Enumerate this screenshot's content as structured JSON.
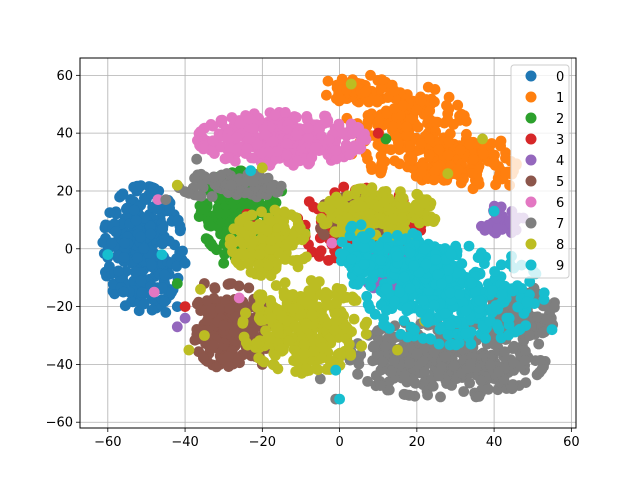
{
  "chart_data": {
    "type": "scatter",
    "title": "",
    "xlabel": "",
    "ylabel": "",
    "xlim": [
      -67.2,
      61.2
    ],
    "ylim": [
      -62.0,
      66.0
    ],
    "xticks": [
      -60,
      -40,
      -20,
      0,
      20,
      40,
      60
    ],
    "yticks": [
      -60,
      -40,
      -20,
      0,
      20,
      40,
      60
    ],
    "xtick_labels": [
      "−60",
      "−40",
      "−20",
      "0",
      "20",
      "40",
      "60"
    ],
    "ytick_labels": [
      "−60",
      "−40",
      "−20",
      "0",
      "20",
      "40",
      "60"
    ],
    "grid": true,
    "legend_position": "top-right",
    "series": [
      {
        "name": "0",
        "color": "#1f77b4",
        "clusters": [
          {
            "cx": -51,
            "cy": 0,
            "rx": 9,
            "ry": 19,
            "n": 300
          }
        ],
        "points": [
          [
            -60,
            -3
          ],
          [
            -59,
            2
          ],
          [
            -56,
            -15
          ],
          [
            -45,
            -22
          ],
          [
            -42,
            -20
          ],
          [
            -44,
            14
          ],
          [
            -40,
            -5
          ]
        ]
      },
      {
        "name": "1",
        "color": "#ff7f0e",
        "clusters": [
          {
            "cx": 17,
            "cy": 41,
            "rx": 14,
            "ry": 14,
            "n": 180
          },
          {
            "cx": 32,
            "cy": 30,
            "rx": 12,
            "ry": 9,
            "n": 150
          },
          {
            "cx": 5,
            "cy": 55,
            "rx": 8,
            "ry": 4,
            "n": 60
          }
        ],
        "points": [
          [
            -3,
            58
          ],
          [
            8,
            60
          ],
          [
            20,
            48
          ],
          [
            40,
            30
          ],
          [
            44,
            22
          ]
        ]
      },
      {
        "name": "2",
        "color": "#2ca02c",
        "clusters": [
          {
            "cx": -26,
            "cy": 12,
            "rx": 9,
            "ry": 13,
            "n": 260
          }
        ],
        "points": [
          [
            -18,
            -8
          ],
          [
            -30,
            -5
          ],
          [
            -42,
            -12
          ],
          [
            -9,
            6
          ],
          [
            5,
            40
          ],
          [
            12,
            38
          ],
          [
            -15,
            20
          ]
        ]
      },
      {
        "name": "3",
        "color": "#d62728",
        "clusters": [
          {
            "cx": 5,
            "cy": 8,
            "rx": 14,
            "ry": 12,
            "n": 160
          }
        ],
        "points": [
          [
            -40,
            -20
          ],
          [
            -24,
            12
          ],
          [
            -22,
            8
          ],
          [
            -19,
            -5
          ],
          [
            -26,
            -30
          ],
          [
            10,
            40
          ],
          [
            30,
            0
          ]
        ]
      },
      {
        "name": "4",
        "color": "#9467bd",
        "clusters": [
          {
            "cx": 17,
            "cy": -8,
            "rx": 10,
            "ry": 7,
            "n": 120
          },
          {
            "cx": 42,
            "cy": 10,
            "rx": 5,
            "ry": 5,
            "n": 40
          }
        ],
        "points": [
          [
            -42,
            -27
          ],
          [
            -40,
            -24
          ],
          [
            -20,
            -22
          ],
          [
            5,
            -8
          ]
        ]
      },
      {
        "name": "5",
        "color": "#8c564b",
        "clusters": [
          {
            "cx": -28,
            "cy": -27,
            "rx": 9,
            "ry": 13,
            "n": 200
          },
          {
            "cx": 5,
            "cy": 10,
            "rx": 9,
            "ry": 9,
            "n": 80
          }
        ],
        "points": [
          [
            -35,
            -12
          ],
          [
            -20,
            -40
          ]
        ]
      },
      {
        "name": "6",
        "color": "#e377c2",
        "clusters": [
          {
            "cx": -15,
            "cy": 38,
            "rx": 19,
            "ry": 8,
            "n": 360
          }
        ],
        "points": [
          [
            -48,
            -15
          ],
          [
            -47,
            17
          ],
          [
            -26,
            -17
          ],
          [
            10,
            10
          ],
          [
            -2,
            2
          ],
          [
            20,
            -3
          ],
          [
            5,
            -5
          ]
        ]
      },
      {
        "name": "7",
        "color": "#7f7f7f",
        "clusters": [
          {
            "cx": 28,
            "cy": -38,
            "rx": 22,
            "ry": 12,
            "n": 360
          },
          {
            "cx": 46,
            "cy": -22,
            "rx": 9,
            "ry": 8,
            "n": 120
          },
          {
            "cx": -28,
            "cy": 22,
            "rx": 12,
            "ry": 4,
            "n": 80
          }
        ],
        "points": [
          [
            -45,
            17
          ],
          [
            -37,
            31
          ],
          [
            -5,
            -45
          ],
          [
            -1,
            -52
          ]
        ]
      },
      {
        "name": "8",
        "color": "#bcbd22",
        "clusters": [
          {
            "cx": -9,
            "cy": -27,
            "rx": 14,
            "ry": 14,
            "n": 300
          },
          {
            "cx": 10,
            "cy": 12,
            "rx": 13,
            "ry": 8,
            "n": 200
          },
          {
            "cx": -18,
            "cy": 2,
            "rx": 9,
            "ry": 10,
            "n": 160
          }
        ],
        "points": [
          [
            -42,
            22
          ],
          [
            -39,
            -35
          ],
          [
            -36,
            -14
          ],
          [
            -35,
            -30
          ],
          [
            -20,
            28
          ],
          [
            3,
            57
          ],
          [
            28,
            26
          ],
          [
            37,
            38
          ],
          [
            22,
            -25
          ],
          [
            15,
            -35
          ]
        ]
      },
      {
        "name": "9",
        "color": "#17becf",
        "clusters": [
          {
            "cx": 30,
            "cy": -16,
            "rx": 20,
            "ry": 15,
            "n": 340
          },
          {
            "cx": 18,
            "cy": -5,
            "rx": 10,
            "ry": 9,
            "n": 120
          },
          {
            "cx": 5,
            "cy": -2,
            "rx": 5,
            "ry": 9,
            "n": 70
          }
        ],
        "points": [
          [
            -60,
            -2
          ],
          [
            -46,
            -2
          ],
          [
            -23,
            27
          ],
          [
            -1,
            -42
          ],
          [
            0,
            -52
          ],
          [
            40,
            13
          ],
          [
            55,
            -28
          ],
          [
            36,
            -3
          ]
        ]
      }
    ]
  }
}
